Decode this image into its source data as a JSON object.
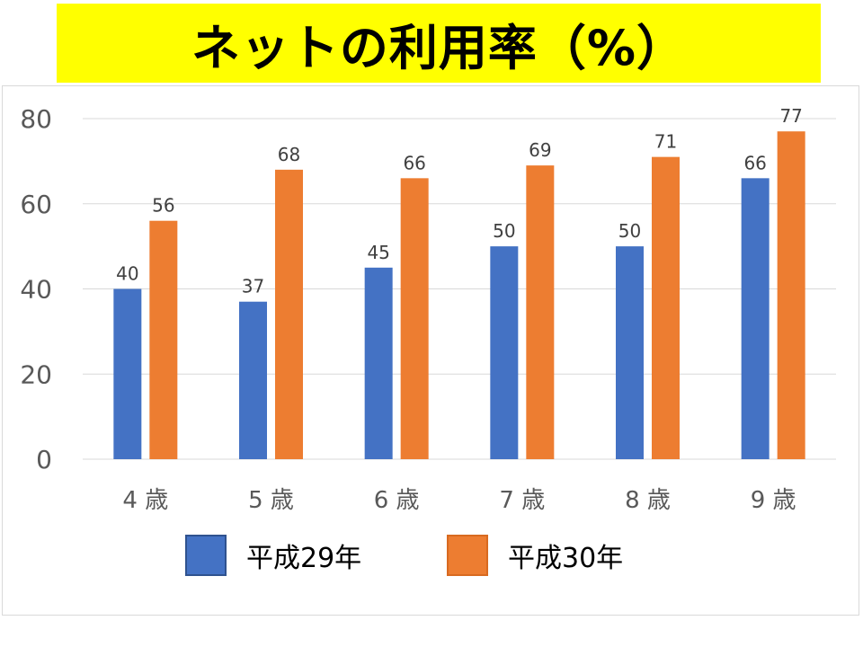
{
  "title": "ネットの利用率（%）",
  "colors": {
    "title_background": "#ffff00",
    "series_1": "#4472c4",
    "series_2": "#ed7d31",
    "gridline": "#d9d9d9",
    "tick_text": "#595959",
    "label_text": "#404040"
  },
  "legend": {
    "items": [
      {
        "label": "平成29年"
      },
      {
        "label": "平成30年"
      }
    ]
  },
  "chart_data": {
    "type": "bar",
    "title": "ネットの利用率（%）",
    "categories": [
      "4 歳",
      "5 歳",
      "6 歳",
      "7 歳",
      "8 歳",
      "9 歳"
    ],
    "series": [
      {
        "name": "平成29年",
        "values": [
          40,
          37,
          45,
          50,
          50,
          66
        ]
      },
      {
        "name": "平成30年",
        "values": [
          56,
          68,
          66,
          69,
          71,
          77
        ]
      }
    ],
    "y_ticks": [
      0,
      20,
      40,
      60,
      80
    ],
    "ylim": [
      0,
      80
    ],
    "xlabel": "",
    "ylabel": "",
    "grid": true,
    "data_labels": true,
    "legend_position": "bottom"
  }
}
